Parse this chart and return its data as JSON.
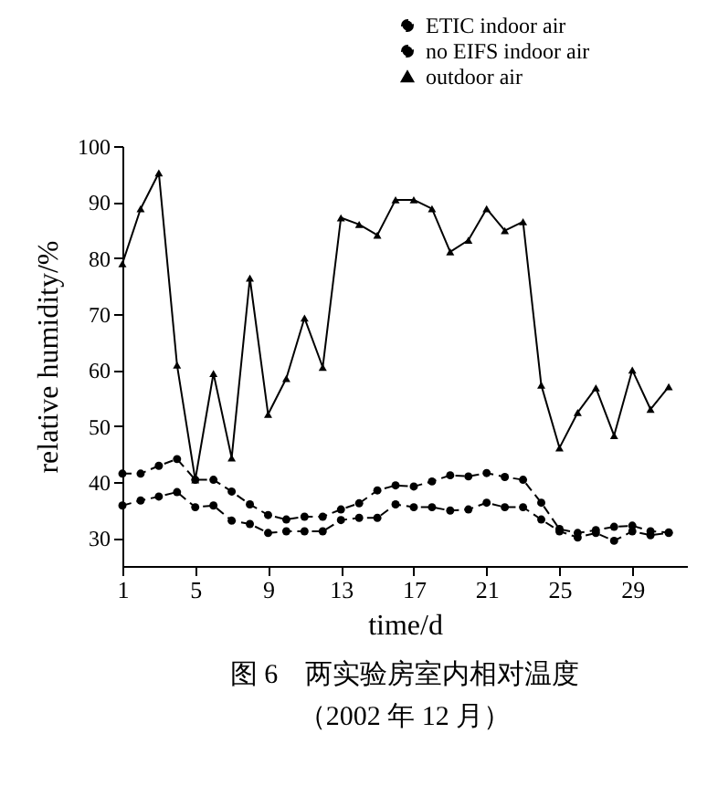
{
  "chart_data": {
    "type": "line",
    "title": "图 6　两实验房室内相对温度",
    "subtitle": "（2002 年 12 月）",
    "xlabel": "time/d",
    "ylabel": "relative humidity/%",
    "x": [
      1,
      2,
      3,
      4,
      5,
      6,
      7,
      8,
      9,
      10,
      11,
      12,
      13,
      14,
      15,
      16,
      17,
      18,
      19,
      20,
      21,
      22,
      23,
      24,
      25,
      26,
      27,
      28,
      29,
      30,
      31
    ],
    "series": [
      {
        "name": "ETIC indoor air",
        "color": "#000000",
        "marker": "circle",
        "line_style": "dashed",
        "values": [
          35.8,
          36.7,
          37.4,
          38.2,
          35.5,
          35.8,
          33.1,
          32.5,
          30.9,
          31.2,
          31.2,
          31.2,
          33.2,
          33.6,
          33.6,
          36,
          35.5,
          35.5,
          34.9,
          35.1,
          36.3,
          35.5,
          35.5,
          33.3,
          31.2,
          30.1,
          30.9,
          29.5,
          31.2,
          30.5,
          30.9
        ]
      },
      {
        "name": "no EIFS indoor air",
        "color": "#000000",
        "marker": "circle",
        "line_style": "dashed",
        "values": [
          41.5,
          41.5,
          42.9,
          44.1,
          40.4,
          40.4,
          38.3,
          36,
          34.1,
          33.3,
          33.8,
          33.8,
          35.1,
          36.2,
          38.5,
          39.4,
          39.2,
          40.1,
          41.2,
          41,
          41.6,
          40.9,
          40.4,
          36.3,
          31.6,
          30.9,
          31.4,
          32,
          32.2,
          31.2,
          31
        ]
      },
      {
        "name": "outdoor air",
        "color": "#000000",
        "marker": "triangle",
        "line_style": "solid",
        "values": [
          79,
          88.8,
          95.2,
          60.9,
          40.4,
          59.4,
          44.3,
          76.4,
          52.1,
          58.5,
          69.3,
          60.5,
          87.2,
          86,
          84.1,
          90.4,
          90.4,
          88.8,
          81.1,
          83.2,
          88.8,
          84.9,
          86.5,
          57.3,
          46.1,
          52.4,
          56.8,
          48.3,
          60,
          53,
          57
        ]
      }
    ],
    "xlim": [
      1,
      32
    ],
    "xticks": [
      1,
      5,
      9,
      13,
      17,
      21,
      25,
      29
    ],
    "ylim": [
      25,
      100
    ],
    "yticks": [
      30,
      40,
      50,
      60,
      70,
      80,
      90,
      100
    ],
    "grid": false,
    "legend": "top right"
  }
}
